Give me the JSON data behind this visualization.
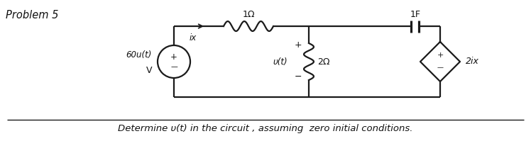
{
  "background_color": "#ffffff",
  "title_text": "Problem 5",
  "bottom_text": "Determine υ(t) in the circuit , assuming  zero initial conditions.",
  "source_label": "60u(t)",
  "source_label2": "V",
  "ix_label": "ix",
  "resistor1_label": "1Ω",
  "capacitor_label": "1F",
  "resistor2_label": "2Ω",
  "vt_label": "υ(t)",
  "dep_label": "2ix",
  "plus_sign": "+",
  "minus_sign": "-",
  "line_color": "#1a1a1a",
  "line_width": 1.6,
  "text_color": "#111111"
}
